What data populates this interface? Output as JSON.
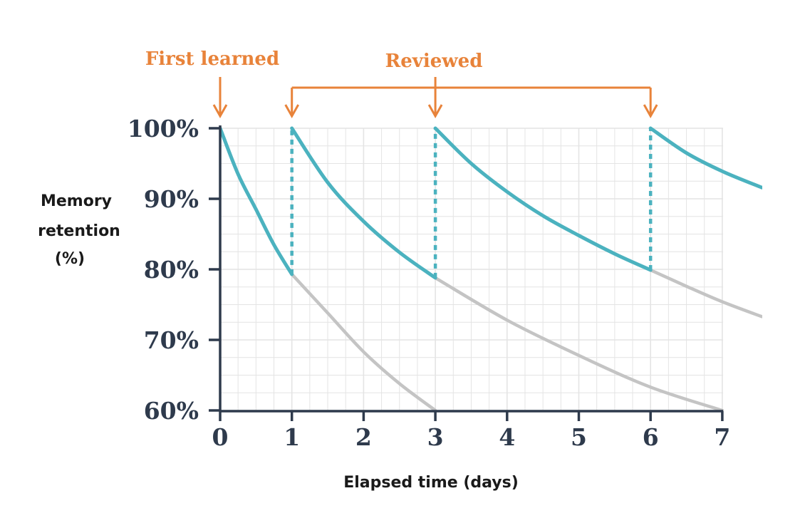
{
  "chart_data": {
    "type": "line",
    "xlabel": "Elapsed time (days)",
    "ylabel_lines": [
      "Memory",
      "retention",
      "(%)"
    ],
    "xlim": [
      0,
      7.55
    ],
    "ylim": [
      60,
      100
    ],
    "x_ticks": [
      0,
      1,
      2,
      3,
      4,
      5,
      6,
      7
    ],
    "x_tick_labels": [
      "0",
      "1",
      "2",
      "3",
      "4",
      "5",
      "6",
      "7"
    ],
    "y_ticks": [
      60,
      70,
      80,
      90,
      100
    ],
    "y_tick_labels": [
      "60%",
      "70%",
      "80%",
      "90%",
      "100%"
    ],
    "grid": true,
    "annotations": {
      "first_learned": {
        "text": "First learned",
        "day": 0
      },
      "reviewed": {
        "text": "Reviewed",
        "days": [
          1,
          3,
          6
        ]
      }
    },
    "series": [
      {
        "role": "retention",
        "x": [
          0,
          0.25,
          0.5,
          0.75,
          1.0
        ],
        "y": [
          100,
          93.5,
          88.5,
          83.5,
          79.3
        ]
      },
      {
        "role": "retention",
        "x": [
          1,
          1.5,
          2,
          2.5,
          3
        ],
        "y": [
          100,
          92.3,
          86.8,
          82.4,
          78.8
        ]
      },
      {
        "role": "retention",
        "x": [
          3,
          3.5,
          4,
          4.5,
          5,
          5.5,
          6
        ],
        "y": [
          100,
          95,
          91,
          87.6,
          84.8,
          82.2,
          79.9
        ]
      },
      {
        "role": "retention",
        "x": [
          6,
          6.5,
          7,
          7.55
        ],
        "y": [
          100,
          96.5,
          93.9,
          91.6
        ]
      },
      {
        "role": "forgetting",
        "x": [
          1,
          1.5,
          2,
          2.5,
          3
        ],
        "y": [
          79.3,
          73.8,
          68.3,
          63.8,
          60
        ]
      },
      {
        "role": "forgetting",
        "x": [
          3,
          4,
          5,
          6,
          7
        ],
        "y": [
          78.8,
          72.8,
          67.8,
          63.3,
          60
        ]
      },
      {
        "role": "forgetting",
        "x": [
          6,
          6.5,
          7,
          7.55
        ],
        "y": [
          79.9,
          77.6,
          75.4,
          73.3
        ]
      }
    ],
    "review_jumps": [
      {
        "x": 1,
        "y_from": 79.3,
        "y_to": 100
      },
      {
        "x": 3,
        "y_from": 78.8,
        "y_to": 100
      },
      {
        "x": 6,
        "y_from": 79.9,
        "y_to": 100
      }
    ],
    "colors": {
      "retention": "#4bb2bf",
      "forgetting": "#c4c4c4",
      "axis": "#2e3a4c",
      "grid": "#e4e4e4",
      "annotation": "#e8833a"
    }
  }
}
